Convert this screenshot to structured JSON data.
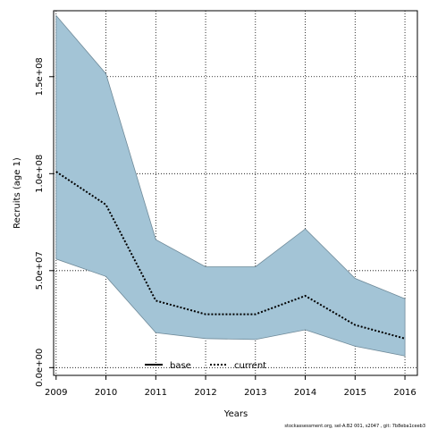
{
  "chart_data": {
    "type": "area",
    "xlabel": "Years",
    "ylabel": "Recruits (age 1)",
    "x": [
      2009,
      2010,
      2011,
      2012,
      2013,
      2014,
      2015,
      2016
    ],
    "xlim": [
      2008.95,
      2016.25
    ],
    "ylim": [
      -4000000,
      184000000
    ],
    "yticks": [
      0,
      50000000,
      100000000,
      150000000
    ],
    "ytick_labels": [
      "0.0e+00",
      "5.0e+07",
      "1.0e+08",
      "1.5e+08"
    ],
    "xtick_labels": [
      "2009",
      "2010",
      "2011",
      "2012",
      "2013",
      "2014",
      "2015",
      "2016"
    ],
    "grid": true,
    "series": [
      {
        "name": "current",
        "line_style": "dotted",
        "values": [
          101000000,
          84000000,
          34500000,
          27500000,
          27500000,
          37000000,
          22000000,
          15000000
        ]
      }
    ],
    "band": {
      "upper": [
        181500000,
        151500000,
        66000000,
        52000000,
        52000000,
        71500000,
        46000000,
        35500000
      ],
      "lower": [
        56000000,
        47000000,
        18000000,
        15000000,
        14500000,
        19500000,
        11000000,
        6000000
      ],
      "color": "#a3c4d6"
    },
    "legend": {
      "placement": "bottom-center",
      "entries": [
        {
          "label": "base",
          "style": "solid"
        },
        {
          "label": "current",
          "style": "dotted"
        }
      ]
    },
    "footnote": "stockassessment.org, sel-A.B2 001, s2047 , git: 7b8eba1ceeb3"
  }
}
